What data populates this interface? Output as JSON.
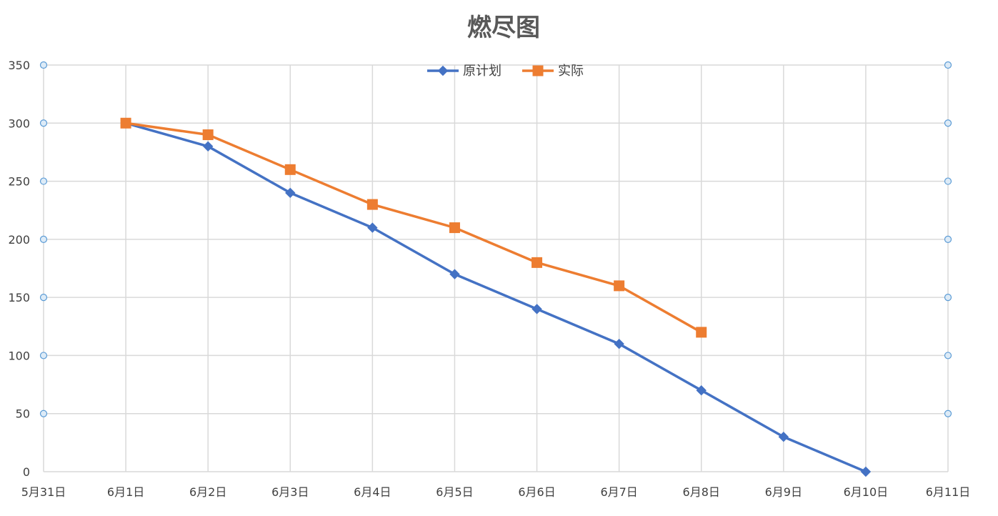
{
  "chart_data": {
    "type": "line",
    "title": "燃尽图",
    "categories": [
      "5月31日",
      "6月1日",
      "6月2日",
      "6月3日",
      "6月4日",
      "6月5日",
      "6月6日",
      "6月7日",
      "6月8日",
      "6月9日",
      "6月10日",
      "6月11日"
    ],
    "y_ticks": [
      0,
      50,
      100,
      150,
      200,
      250,
      300,
      350
    ],
    "ylim": [
      0,
      350
    ],
    "grid": true,
    "legend_position": "top-center",
    "series": [
      {
        "name": "原计划",
        "color": "#4472C4",
        "marker": "diamond",
        "values": [
          null,
          300,
          280,
          240,
          210,
          170,
          140,
          110,
          70,
          30,
          0,
          null
        ]
      },
      {
        "name": "实际",
        "color": "#ED7D31",
        "marker": "square",
        "values": [
          null,
          300,
          290,
          260,
          230,
          210,
          180,
          160,
          120,
          null,
          null,
          null
        ]
      }
    ]
  }
}
